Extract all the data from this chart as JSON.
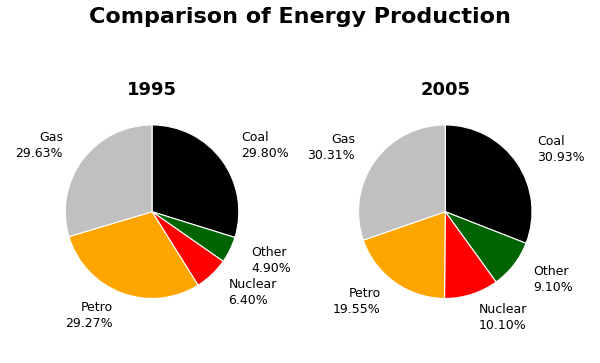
{
  "title": "Comparison of Energy Production",
  "title_fontsize": 16,
  "title_fontweight": "bold",
  "charts": [
    {
      "year": "1995",
      "year_color": "#000000",
      "year_fontweight": "bold",
      "labels": [
        "Coal",
        "Other",
        "Nuclear",
        "Petro",
        "Gas"
      ],
      "values": [
        29.8,
        4.9,
        6.4,
        29.27,
        29.63
      ],
      "colors": [
        "#000000",
        "#006400",
        "#ff0000",
        "#ffa500",
        "#c0c0c0"
      ],
      "label_lines": [
        [
          "Coal",
          "29.80%"
        ],
        [
          "Other",
          "4.90%"
        ],
        [
          "Nuclear",
          "6.40%"
        ],
        [
          "Petro",
          "29.27%"
        ],
        [
          "Gas",
          "29.63%"
        ]
      ],
      "startangle": 90
    },
    {
      "year": "2005",
      "year_color": "#000000",
      "year_fontweight": "bold",
      "labels": [
        "Coal",
        "Other",
        "Nuclear",
        "Petro",
        "Gas"
      ],
      "values": [
        30.93,
        9.1,
        10.1,
        19.55,
        30.31
      ],
      "colors": [
        "#000000",
        "#006400",
        "#ff0000",
        "#ffa500",
        "#c0c0c0"
      ],
      "label_lines": [
        [
          "Coal",
          "30.93%"
        ],
        [
          "Other",
          "9.10%"
        ],
        [
          "Nuclear",
          "10.10%"
        ],
        [
          "Petro",
          "19.55%"
        ],
        [
          "Gas",
          "30.31%"
        ]
      ],
      "startangle": 90
    }
  ],
  "background_color": "#ffffff",
  "label_fontsize": 9,
  "year_fontsize": 13
}
